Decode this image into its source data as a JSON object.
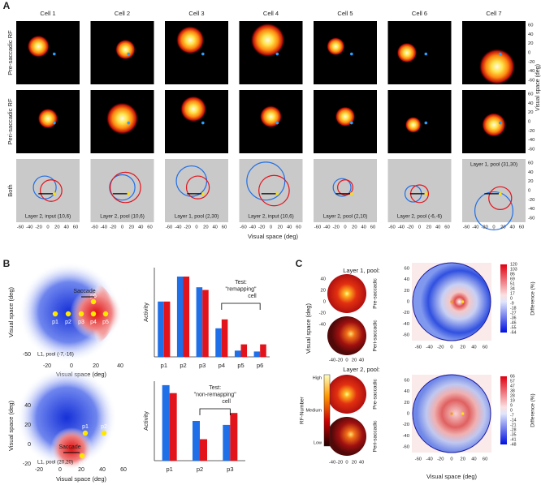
{
  "panel_labels": [
    "A",
    "B",
    "C"
  ],
  "panel_a": {
    "cells": [
      "Cell 1",
      "Cell 2",
      "Cell 3",
      "Cell 4",
      "Cell 5",
      "Cell 6",
      "Cell 7"
    ],
    "rows": [
      "Pre-saccadic RF",
      "Peri-saccadic RF",
      "Both"
    ],
    "unit_labels": [
      "Layer 2, input (10,6)",
      "Layer 2, pool (10,6)",
      "Layer 1, pool (2,30)",
      "Layer 2, input (10,6)",
      "Layer 2, pool (2,10)",
      "Layer 2, pool (-6,-6)",
      "Layer 1, pool (31,30)"
    ],
    "xticks": [
      -60,
      -40,
      -20,
      0,
      20,
      40,
      60
    ],
    "yticks": [
      60,
      40,
      20,
      0,
      -20,
      -40,
      -60
    ],
    "xlabel": "Visual space (deg)",
    "ylabel": "Visual space (deg)"
  },
  "panel_b": {
    "maps": [
      {
        "label": "L1, pool (-7,-16)",
        "saccade": "Saccade",
        "points": [
          "p1",
          "p2",
          "p3",
          "p4",
          "p5",
          "p6"
        ],
        "xticks": [
          -20,
          0,
          20,
          40
        ],
        "yticks": [
          -50
        ]
      },
      {
        "label": "L1, pool (20,20)",
        "saccade": "Saccade",
        "points": [
          "p1",
          "p2",
          "p3"
        ],
        "xticks": [
          -20,
          0,
          20,
          40,
          60
        ],
        "yticks": [
          40,
          20,
          0,
          -20
        ]
      }
    ],
    "xlabel": "Visual space (deg)",
    "ylabel": "Visual space (deg)"
  },
  "chart_data": [
    {
      "type": "bar",
      "ylabel": "Activity",
      "annotation": [
        "Test:",
        "\"remapping\"",
        "cell"
      ],
      "categories": [
        "p1",
        "p2",
        "p3",
        "p4",
        "p5",
        "p6"
      ],
      "series": [
        {
          "color": "#1f6fe8",
          "values": [
            0.62,
            0.9,
            0.78,
            0.32,
            0.07,
            0.06
          ]
        },
        {
          "color": "#e3131b",
          "values": [
            0.62,
            0.9,
            0.75,
            0.42,
            0.14,
            0.14
          ]
        }
      ],
      "ylim": [
        0,
        1
      ]
    },
    {
      "type": "bar",
      "ylabel": "Activity",
      "annotation": [
        "Test:",
        "\"non-remapping\"",
        "cell"
      ],
      "categories": [
        "p1",
        "p2",
        "p3"
      ],
      "series": [
        {
          "color": "#1f6fe8",
          "values": [
            0.95,
            0.5,
            0.45
          ]
        },
        {
          "color": "#e3131b",
          "values": [
            0.85,
            0.27,
            0.6
          ]
        }
      ],
      "ylim": [
        0,
        1
      ]
    }
  ],
  "panel_c": {
    "layers": [
      {
        "title": "Layer 1, pool:",
        "colorbar_ticks": [
          120,
          103,
          86,
          69,
          51,
          34,
          17,
          0,
          -9,
          -18,
          -27,
          -36,
          -46,
          -55,
          -64
        ]
      },
      {
        "title": "Layer 2, pool:",
        "colorbar_ticks": [
          66,
          57,
          47,
          38,
          28,
          19,
          9,
          0,
          -7,
          -14,
          -21,
          -28,
          -35,
          -41,
          -48
        ]
      }
    ],
    "row_labels": [
      "Pre-saccadic",
      "Peri-saccadic"
    ],
    "small_xticks": [
      -40,
      -20,
      0,
      20,
      40
    ],
    "small_yticks": [
      40,
      20,
      0,
      -20,
      -40
    ],
    "big_xticks": [
      -60,
      -40,
      -20,
      0,
      20,
      40,
      60
    ],
    "big_yticks": [
      60,
      40,
      20,
      0,
      -20,
      -40,
      -60
    ],
    "colorbar_label": "Difference (%)",
    "rf_levels": [
      "High",
      "Medium",
      "Low"
    ],
    "rf_label": "RF-Number",
    "xlabel": "Visual space (deg)",
    "ylabel": "Visual space (deg)"
  }
}
